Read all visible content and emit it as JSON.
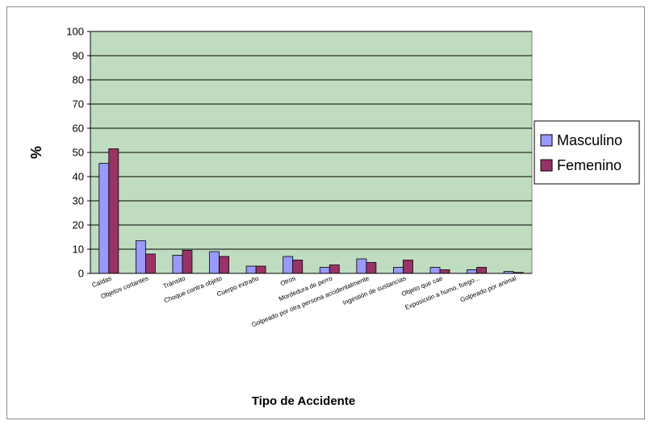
{
  "chart_data": {
    "type": "bar",
    "title": "",
    "xlabel": "Tipo de Accidente",
    "ylabel": "%",
    "ylim": [
      0,
      100
    ],
    "yticks": [
      0,
      10,
      20,
      30,
      40,
      50,
      60,
      70,
      80,
      90,
      100
    ],
    "grid": true,
    "legend_position": "right",
    "plot_background": "#c0dcc0",
    "categories": [
      "Caídas",
      "Objetos cortantes",
      "Tránsito",
      "Choque contra objeto",
      "Cuerpo extraño",
      "Otros",
      "Mordedura de perro",
      "Golpeado por otra persona accidentalmente",
      "Ingestión de sustancias",
      "Objeto que cae",
      "Exposición a humo, fuego...",
      "Golpeado por animal"
    ],
    "series": [
      {
        "name": "Masculino",
        "color": "#9999ff",
        "values": [
          45.5,
          13.5,
          7.5,
          9,
          3,
          7,
          2.5,
          6,
          2.5,
          2.5,
          1.5,
          0.8
        ]
      },
      {
        "name": "Femenino",
        "color": "#993366",
        "values": [
          51.5,
          8,
          9.5,
          7,
          3,
          5.5,
          3.5,
          4.5,
          5.5,
          1.5,
          2.5,
          0.4
        ]
      }
    ]
  }
}
